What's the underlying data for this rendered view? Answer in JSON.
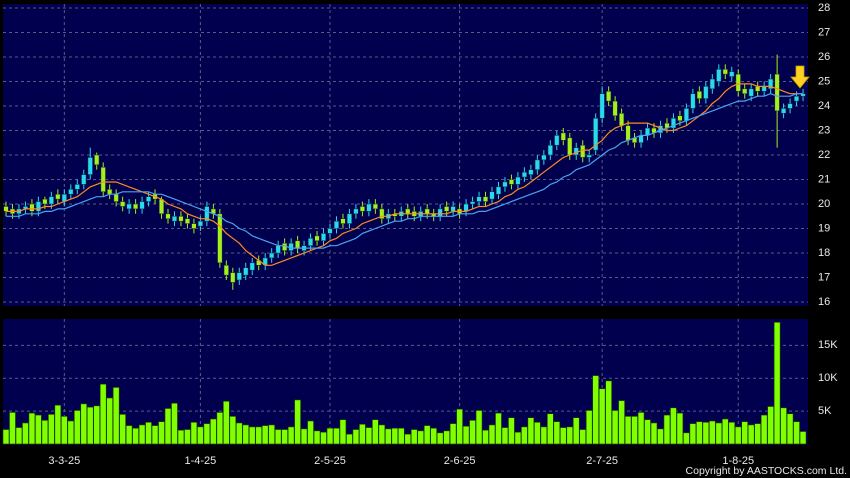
{
  "chart_data": [
    {
      "type": "candlestick",
      "open": [
        19.9,
        19.8,
        19.6,
        19.8,
        20.0,
        19.7,
        20.2,
        20.0,
        20.4,
        20.1,
        20.4,
        20.6,
        20.8,
        21.2,
        22.0,
        21.5,
        20.6,
        20.4,
        20.1,
        19.8,
        20.0,
        19.8,
        20.1,
        20.4,
        20.2,
        19.6,
        19.3,
        19.5,
        19.4,
        19.2,
        19.1,
        19.3,
        19.8,
        19.6,
        17.5,
        17.2,
        16.9,
        17.1,
        17.3,
        17.7,
        17.5,
        17.8,
        18.0,
        18.4,
        18.1,
        18.5,
        18.1,
        18.3,
        18.7,
        18.5,
        18.8,
        19.0,
        19.4,
        19.2,
        19.6,
        19.9,
        19.7,
        20.0,
        19.8,
        19.4,
        19.6,
        19.5,
        19.8,
        19.7,
        19.5,
        19.8,
        19.6,
        19.5,
        19.9,
        19.7,
        19.8,
        19.7,
        20.0,
        20.1,
        20.3,
        20.2,
        20.4,
        20.7,
        21.0,
        20.8,
        21.1,
        21.2,
        21.4,
        21.8,
        22.0,
        22.4,
        22.9,
        22.7,
        22.0,
        22.4,
        21.9,
        22.2,
        23.5,
        24.6,
        24.2,
        23.7,
        23.2,
        22.7,
        22.5,
        22.8,
        23.1,
        22.9,
        23.3,
        23.1,
        23.6,
        23.4,
        23.9,
        24.6,
        24.3,
        24.7,
        25.0,
        25.5,
        25.2,
        25.3,
        24.7,
        24.4,
        24.8,
        24.6,
        24.7,
        25.3,
        23.7,
        23.9,
        24.2,
        24.4
      ],
      "high": [
        20.1,
        20.0,
        20.0,
        20.1,
        20.2,
        20.3,
        20.3,
        20.5,
        20.6,
        20.6,
        20.8,
        21.0,
        21.4,
        22.3,
        22.1,
        21.7,
        20.8,
        20.6,
        20.3,
        20.2,
        20.2,
        20.3,
        20.5,
        20.6,
        20.3,
        19.8,
        19.7,
        19.7,
        19.6,
        19.4,
        19.5,
        20.1,
        20.0,
        19.8,
        17.7,
        17.4,
        17.4,
        17.6,
        17.8,
        17.9,
        18.0,
        18.2,
        18.5,
        18.6,
        18.6,
        18.7,
        18.5,
        18.8,
        18.9,
        19.0,
        19.2,
        19.5,
        19.6,
        19.8,
        20.0,
        20.1,
        20.2,
        20.2,
        20.0,
        19.8,
        19.8,
        19.9,
        20.0,
        19.9,
        19.9,
        20.0,
        19.8,
        20.0,
        20.1,
        20.1,
        20.0,
        20.2,
        20.3,
        20.5,
        20.5,
        20.7,
        20.9,
        21.1,
        21.2,
        21.3,
        21.5,
        21.6,
        22.0,
        22.2,
        22.6,
        23.0,
        23.1,
        22.9,
        22.5,
        22.6,
        22.2,
        23.7,
        24.8,
        24.8,
        24.4,
        23.9,
        23.4,
        22.9,
        23.0,
        23.3,
        23.3,
        23.4,
        23.5,
        23.7,
        23.8,
        24.1,
        24.7,
        24.8,
        25.0,
        25.3,
        25.7,
        25.7,
        25.6,
        25.5,
        24.9,
        24.9,
        25.0,
        25.0,
        25.3,
        26.1,
        24.1,
        24.3,
        24.6,
        24.7
      ],
      "low": [
        19.5,
        19.4,
        19.4,
        19.6,
        19.5,
        19.5,
        19.8,
        19.8,
        20.0,
        19.9,
        20.2,
        20.4,
        20.6,
        21.0,
        21.4,
        20.3,
        20.2,
        19.9,
        19.7,
        19.6,
        19.6,
        19.6,
        19.9,
        20.0,
        19.4,
        19.2,
        19.1,
        19.1,
        19.0,
        18.8,
        18.9,
        19.1,
        19.4,
        17.4,
        16.9,
        16.5,
        16.7,
        16.9,
        17.1,
        17.3,
        17.3,
        17.6,
        17.8,
        17.9,
        17.9,
        18.0,
        17.9,
        18.1,
        18.3,
        18.3,
        18.6,
        18.8,
        19.0,
        19.0,
        19.4,
        19.5,
        19.5,
        19.6,
        19.2,
        19.2,
        19.3,
        19.3,
        19.4,
        19.3,
        19.3,
        19.4,
        19.3,
        19.3,
        19.5,
        19.5,
        19.4,
        19.5,
        19.8,
        19.9,
        19.9,
        20.0,
        20.2,
        20.5,
        20.6,
        20.6,
        20.9,
        21.0,
        21.2,
        21.6,
        21.8,
        22.2,
        22.4,
        21.8,
        21.8,
        21.7,
        21.7,
        22.0,
        23.3,
        24.0,
        23.4,
        23.0,
        22.4,
        22.3,
        22.3,
        22.6,
        22.7,
        22.7,
        22.9,
        22.9,
        23.2,
        23.2,
        23.7,
        24.1,
        24.1,
        24.5,
        24.8,
        25.1,
        25.0,
        24.4,
        24.3,
        24.2,
        24.4,
        24.4,
        24.5,
        22.3,
        23.5,
        23.7,
        24.0,
        24.2
      ],
      "close": [
        19.7,
        19.6,
        19.8,
        19.9,
        19.7,
        20.1,
        20.0,
        20.3,
        20.2,
        20.4,
        20.6,
        20.8,
        21.2,
        21.9,
        21.6,
        20.5,
        20.4,
        20.1,
        19.9,
        20.0,
        19.8,
        20.1,
        20.3,
        20.2,
        19.6,
        19.4,
        19.5,
        19.3,
        19.2,
        19.0,
        19.3,
        19.9,
        19.6,
        17.6,
        17.1,
        16.8,
        17.2,
        17.4,
        17.6,
        17.5,
        17.8,
        18.0,
        18.3,
        18.1,
        18.4,
        18.2,
        18.3,
        18.6,
        18.5,
        18.8,
        19.0,
        19.3,
        19.2,
        19.6,
        19.8,
        19.7,
        20.0,
        19.8,
        19.4,
        19.6,
        19.5,
        19.7,
        19.6,
        19.5,
        19.7,
        19.6,
        19.5,
        19.8,
        19.7,
        19.9,
        19.6,
        20.0,
        20.1,
        20.3,
        20.1,
        20.5,
        20.7,
        20.9,
        20.8,
        21.1,
        21.3,
        21.4,
        21.8,
        22.0,
        22.4,
        22.8,
        22.6,
        22.0,
        22.3,
        21.9,
        22.0,
        23.5,
        24.5,
        24.2,
        23.6,
        23.2,
        22.6,
        22.5,
        22.8,
        23.1,
        22.9,
        23.2,
        23.1,
        23.5,
        23.4,
        23.9,
        24.5,
        24.3,
        24.8,
        25.1,
        25.5,
        25.3,
        25.4,
        24.6,
        24.5,
        24.7,
        24.6,
        24.8,
        25.1,
        23.8,
        23.9,
        24.1,
        24.4,
        24.5
      ],
      "up_color": "#29d9f0",
      "down_color": "#a6ee1c",
      "series": [
        {
          "color": "#ff8a1e",
          "values": [
            19.7,
            19.7,
            19.7,
            19.8,
            19.8,
            19.8,
            19.9,
            19.9,
            20.0,
            20.1,
            20.2,
            20.3,
            20.5,
            20.7,
            20.8,
            20.9,
            20.9,
            20.9,
            20.8,
            20.7,
            20.6,
            20.5,
            20.4,
            20.3,
            20.2,
            20.0,
            19.9,
            19.8,
            19.6,
            19.5,
            19.4,
            19.4,
            19.3,
            19.1,
            18.8,
            18.6,
            18.4,
            18.1,
            17.9,
            17.7,
            17.5,
            17.5,
            17.6,
            17.7,
            17.8,
            17.9,
            18.0,
            18.1,
            18.2,
            18.3,
            18.5,
            18.6,
            18.8,
            18.9,
            19.0,
            19.2,
            19.3,
            19.4,
            19.5,
            19.5,
            19.6,
            19.6,
            19.6,
            19.6,
            19.6,
            19.6,
            19.6,
            19.6,
            19.6,
            19.7,
            19.7,
            19.7,
            19.8,
            19.9,
            19.9,
            20.0,
            20.1,
            20.3,
            20.4,
            20.6,
            20.7,
            20.9,
            21.1,
            21.3,
            21.5,
            21.7,
            21.9,
            22.0,
            22.1,
            22.2,
            22.2,
            22.4,
            22.6,
            22.9,
            23.1,
            23.2,
            23.3,
            23.3,
            23.3,
            23.3,
            23.2,
            23.1,
            23.0,
            23.0,
            23.1,
            23.2,
            23.4,
            23.6,
            23.8,
            24.1,
            24.3,
            24.6,
            24.8,
            24.9,
            24.9,
            24.9,
            24.8,
            24.8,
            24.8,
            24.7,
            24.6,
            24.5,
            24.5,
            24.5
          ]
        },
        {
          "color": "#4aa3f0",
          "values": [
            19.5,
            19.5,
            19.5,
            19.6,
            19.6,
            19.6,
            19.7,
            19.7,
            19.8,
            19.8,
            19.9,
            20.0,
            20.1,
            20.2,
            20.3,
            20.3,
            20.4,
            20.4,
            20.5,
            20.5,
            20.5,
            20.5,
            20.5,
            20.4,
            20.4,
            20.3,
            20.2,
            20.1,
            20.0,
            19.9,
            19.8,
            19.7,
            19.6,
            19.5,
            19.3,
            19.2,
            19.0,
            18.9,
            18.7,
            18.6,
            18.5,
            18.4,
            18.3,
            18.3,
            18.2,
            18.2,
            18.2,
            18.2,
            18.2,
            18.2,
            18.3,
            18.3,
            18.4,
            18.5,
            18.6,
            18.8,
            18.9,
            19.0,
            19.1,
            19.2,
            19.3,
            19.3,
            19.4,
            19.4,
            19.5,
            19.5,
            19.5,
            19.5,
            19.5,
            19.5,
            19.6,
            19.6,
            19.6,
            19.7,
            19.7,
            19.8,
            19.9,
            20.0,
            20.1,
            20.2,
            20.3,
            20.4,
            20.5,
            20.6,
            20.8,
            20.9,
            21.1,
            21.2,
            21.4,
            21.5,
            21.6,
            21.8,
            22.0,
            22.2,
            22.3,
            22.5,
            22.6,
            22.7,
            22.8,
            22.8,
            22.9,
            23.0,
            23.1,
            23.2,
            23.3,
            23.4,
            23.5,
            23.6,
            23.7,
            23.8,
            23.9,
            24.0,
            24.1,
            24.2,
            24.2,
            24.3,
            24.4,
            24.4,
            24.5,
            24.4,
            24.4,
            24.4,
            24.5,
            24.5
          ]
        }
      ],
      "ylim": [
        15.92,
        28.08
      ],
      "yticks": [
        16,
        17,
        18,
        19,
        20,
        21,
        22,
        23,
        24,
        25,
        26,
        27,
        28
      ],
      "grid": true
    },
    {
      "type": "bar",
      "categories": [
        null,
        null,
        null,
        null,
        null,
        null,
        null,
        null,
        null,
        "3-3-25",
        null,
        null,
        null,
        null,
        null,
        null,
        null,
        null,
        null,
        null,
        null,
        null,
        null,
        null,
        null,
        null,
        null,
        null,
        null,
        null,
        "1-4-25",
        null,
        null,
        null,
        null,
        null,
        null,
        null,
        null,
        null,
        null,
        null,
        null,
        null,
        null,
        null,
        null,
        null,
        null,
        null,
        "2-5-25",
        null,
        null,
        null,
        null,
        null,
        null,
        null,
        null,
        null,
        null,
        null,
        null,
        null,
        null,
        null,
        null,
        null,
        null,
        null,
        "2-6-25",
        null,
        null,
        null,
        null,
        null,
        null,
        null,
        null,
        null,
        null,
        null,
        null,
        null,
        null,
        null,
        null,
        null,
        null,
        null,
        null,
        null,
        "2-7-25",
        null,
        null,
        null,
        null,
        null,
        null,
        null,
        null,
        null,
        null,
        null,
        null,
        null,
        null,
        null,
        null,
        null,
        null,
        null,
        null,
        "1-8-25",
        null,
        null,
        null,
        null,
        null,
        null,
        null,
        null,
        null,
        null
      ],
      "values": [
        2200,
        4800,
        2500,
        3200,
        4700,
        4400,
        3600,
        4500,
        5900,
        4200,
        3500,
        5100,
        6100,
        5600,
        5800,
        9100,
        7000,
        8600,
        4500,
        2800,
        2400,
        2900,
        3300,
        2800,
        3400,
        5400,
        6200,
        2100,
        2200,
        3300,
        2600,
        3100,
        3800,
        4800,
        6500,
        4200,
        3200,
        2900,
        2600,
        2600,
        2800,
        2900,
        2200,
        2200,
        2600,
        6700,
        2300,
        3500,
        2000,
        1800,
        2400,
        2400,
        3700,
        1500,
        2200,
        3000,
        2500,
        3700,
        2900,
        2300,
        2400,
        2400,
        1500,
        2200,
        2000,
        2800,
        2400,
        1700,
        2000,
        3100,
        5300,
        2700,
        3600,
        5100,
        2100,
        2900,
        4700,
        2500,
        4000,
        1800,
        2600,
        4000,
        3300,
        2600,
        4600,
        3400,
        2500,
        2600,
        4000,
        2200,
        5100,
        10400,
        8400,
        9600,
        5100,
        6600,
        4200,
        4200,
        4800,
        3700,
        3200,
        2300,
        4400,
        5500,
        4700,
        1700,
        3100,
        3400,
        3300,
        3500,
        3200,
        3800,
        3300,
        2600,
        3400,
        2900,
        3100,
        4400,
        5700,
        18500,
        5500,
        4600,
        3400,
        1900
      ],
      "color": "#7fff00",
      "ylim": [
        0,
        19000
      ],
      "yticks": [
        {
          "value": 5000,
          "label": "5K"
        },
        {
          "value": 10000,
          "label": "10K"
        },
        {
          "value": 15000,
          "label": "15K"
        }
      ],
      "grid": true,
      "copyright": "Copyright by AASTOCKS.com Ltd."
    }
  ]
}
